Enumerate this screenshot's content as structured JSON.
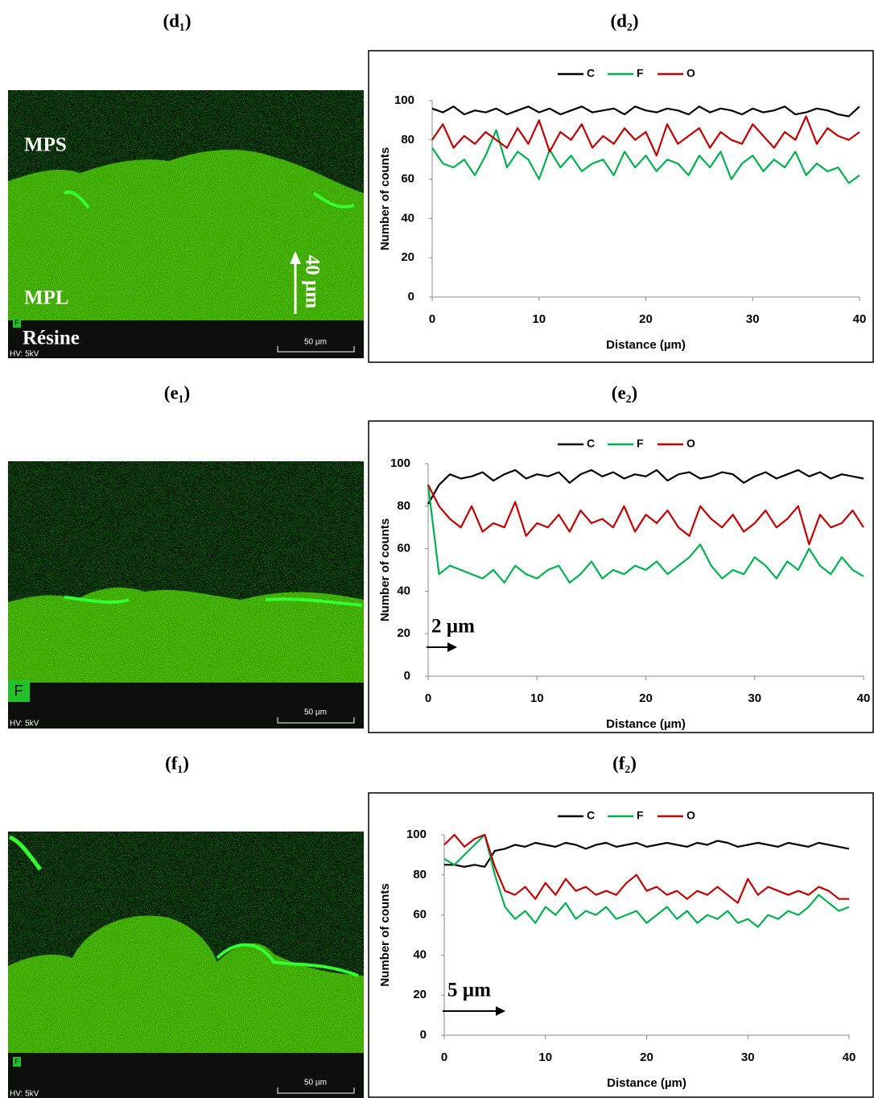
{
  "panel_labels": [
    "(d₁)",
    "(d₂)",
    "(e₁)",
    "(e₂)",
    "(f₁)",
    "(f₂)"
  ],
  "images": [
    {
      "region_top": "MPS",
      "region_mid": "MPL",
      "region_bottom": "Résine",
      "depth_arrow": "40 µm",
      "element": "F",
      "scale_bar": "50 µm",
      "voltage": "HV: 5kV"
    },
    {
      "element": "F",
      "scale_bar": "50 µm",
      "voltage": "HV: 5kV"
    },
    {
      "element": "F",
      "scale_bar": "50 µm",
      "voltage": "HV: 5kV"
    }
  ],
  "chart_data": [
    {
      "type": "line",
      "x_label": "Distance (µm)",
      "y_label": "Number of counts",
      "x": [
        0,
        1,
        2,
        3,
        4,
        5,
        6,
        7,
        8,
        9,
        10,
        11,
        12,
        13,
        14,
        15,
        16,
        17,
        18,
        19,
        20,
        21,
        22,
        23,
        24,
        25,
        26,
        27,
        28,
        29,
        30,
        31,
        32,
        33,
        34,
        35,
        36,
        37,
        38,
        39,
        40
      ],
      "xlim": [
        0,
        40
      ],
      "xticks": [
        0,
        10,
        20,
        30,
        40
      ],
      "ylim": [
        0,
        100
      ],
      "yticks": [
        0,
        20,
        40,
        60,
        80,
        100
      ],
      "legend": "top",
      "series": [
        {
          "name": "C",
          "color": "#000000",
          "values": [
            96,
            94,
            97,
            93,
            95,
            94,
            96,
            93,
            95,
            97,
            94,
            96,
            93,
            95,
            97,
            94,
            95,
            96,
            93,
            97,
            95,
            94,
            96,
            95,
            93,
            97,
            94,
            96,
            95,
            93,
            96,
            94,
            95,
            97,
            93,
            94,
            96,
            95,
            93,
            92,
            97
          ]
        },
        {
          "name": "F",
          "color": "#00b050",
          "values": [
            76,
            68,
            66,
            70,
            62,
            72,
            85,
            66,
            74,
            70,
            60,
            75,
            66,
            72,
            64,
            68,
            70,
            62,
            74,
            66,
            72,
            64,
            70,
            68,
            62,
            72,
            66,
            74,
            60,
            68,
            72,
            64,
            70,
            66,
            74,
            62,
            68,
            64,
            66,
            58,
            62
          ]
        },
        {
          "name": "O",
          "color": "#c00000",
          "values": [
            80,
            88,
            76,
            82,
            78,
            84,
            80,
            76,
            86,
            78,
            90,
            74,
            84,
            80,
            88,
            76,
            82,
            78,
            86,
            80,
            84,
            72,
            88,
            78,
            82,
            86,
            76,
            84,
            80,
            78,
            88,
            82,
            76,
            84,
            80,
            92,
            78,
            86,
            82,
            80,
            84
          ]
        }
      ]
    },
    {
      "type": "line",
      "x_label": "Distance (µm)",
      "y_label": "Number of counts",
      "annotation": "2 µm",
      "x": [
        0,
        1,
        2,
        3,
        4,
        5,
        6,
        7,
        8,
        9,
        10,
        11,
        12,
        13,
        14,
        15,
        16,
        17,
        18,
        19,
        20,
        21,
        22,
        23,
        24,
        25,
        26,
        27,
        28,
        29,
        30,
        31,
        32,
        33,
        34,
        35,
        36,
        37,
        38,
        39,
        40
      ],
      "xlim": [
        0,
        40
      ],
      "xticks": [
        0,
        10,
        20,
        30,
        40
      ],
      "ylim": [
        0,
        100
      ],
      "yticks": [
        0,
        20,
        40,
        60,
        80,
        100
      ],
      "legend": "top",
      "series": [
        {
          "name": "C",
          "color": "#000000",
          "values": [
            81,
            90,
            95,
            93,
            94,
            96,
            92,
            95,
            97,
            93,
            95,
            94,
            96,
            91,
            95,
            97,
            94,
            96,
            93,
            95,
            94,
            97,
            92,
            95,
            96,
            93,
            94,
            96,
            95,
            91,
            94,
            96,
            93,
            95,
            97,
            94,
            96,
            93,
            95,
            94,
            93
          ]
        },
        {
          "name": "F",
          "color": "#00b050",
          "values": [
            90,
            48,
            52,
            50,
            48,
            46,
            50,
            44,
            52,
            48,
            46,
            50,
            52,
            44,
            48,
            54,
            46,
            50,
            48,
            52,
            50,
            54,
            48,
            52,
            56,
            62,
            52,
            46,
            50,
            48,
            56,
            52,
            46,
            54,
            50,
            60,
            52,
            48,
            56,
            50,
            47
          ]
        },
        {
          "name": "O",
          "color": "#c00000",
          "values": [
            90,
            80,
            74,
            70,
            80,
            68,
            72,
            70,
            82,
            66,
            72,
            70,
            76,
            68,
            78,
            72,
            74,
            70,
            80,
            68,
            76,
            72,
            78,
            70,
            66,
            80,
            74,
            70,
            76,
            68,
            72,
            78,
            70,
            74,
            80,
            62,
            76,
            70,
            72,
            78,
            70
          ]
        }
      ]
    },
    {
      "type": "line",
      "x_label": "Distance (µm)",
      "y_label": "Number of counts",
      "annotation": "5 µm",
      "x": [
        0,
        1,
        2,
        3,
        4,
        5,
        6,
        7,
        8,
        9,
        10,
        11,
        12,
        13,
        14,
        15,
        16,
        17,
        18,
        19,
        20,
        21,
        22,
        23,
        24,
        25,
        26,
        27,
        28,
        29,
        30,
        31,
        32,
        33,
        34,
        35,
        36,
        37,
        38,
        39,
        40
      ],
      "xlim": [
        0,
        40
      ],
      "xticks": [
        0,
        10,
        20,
        30,
        40
      ],
      "ylim": [
        0,
        100
      ],
      "yticks": [
        0,
        20,
        40,
        60,
        80,
        100
      ],
      "legend": "top",
      "series": [
        {
          "name": "C",
          "color": "#000000",
          "values": [
            85,
            85,
            84,
            85,
            84,
            92,
            93,
            95,
            94,
            96,
            95,
            94,
            96,
            95,
            93,
            95,
            96,
            94,
            95,
            96,
            94,
            95,
            96,
            95,
            94,
            96,
            95,
            97,
            96,
            94,
            95,
            96,
            95,
            94,
            96,
            95,
            94,
            96,
            95,
            94,
            93
          ]
        },
        {
          "name": "F",
          "color": "#00b050",
          "values": [
            88,
            85,
            90,
            95,
            100,
            80,
            64,
            58,
            62,
            56,
            64,
            60,
            66,
            58,
            62,
            60,
            64,
            58,
            60,
            62,
            56,
            60,
            64,
            58,
            62,
            56,
            60,
            58,
            62,
            56,
            58,
            54,
            60,
            58,
            62,
            60,
            64,
            70,
            66,
            62,
            64
          ]
        },
        {
          "name": "O",
          "color": "#c00000",
          "values": [
            95,
            100,
            94,
            98,
            100,
            84,
            72,
            70,
            74,
            68,
            76,
            70,
            78,
            72,
            74,
            70,
            72,
            70,
            76,
            80,
            72,
            74,
            70,
            72,
            68,
            72,
            70,
            74,
            70,
            66,
            78,
            70,
            74,
            72,
            70,
            72,
            70,
            74,
            72,
            68,
            68
          ]
        }
      ]
    }
  ]
}
